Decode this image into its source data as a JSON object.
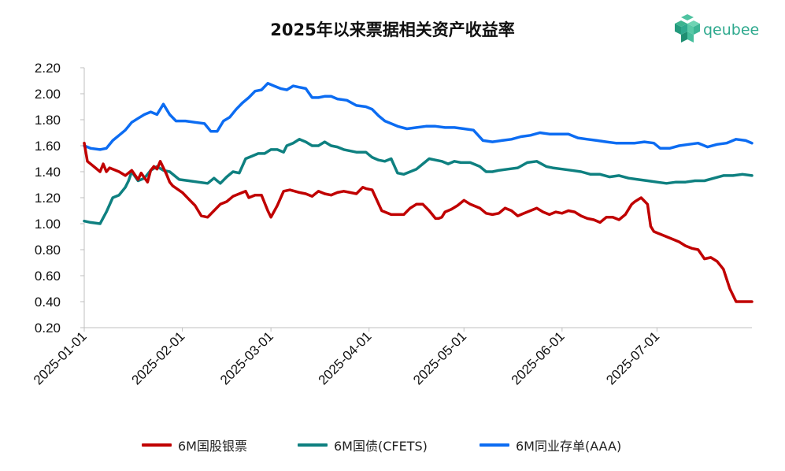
{
  "title": "2025年以来票据相关资产收益率",
  "logo": {
    "text": "qeubee",
    "icon": "hexagon-cube-icon",
    "color": "#2ea98e"
  },
  "chart_data": {
    "type": "line",
    "title": "2025年以来票据相关资产收益率",
    "xlabel": "",
    "ylabel": "",
    "ylim": [
      0.2,
      2.2
    ],
    "yticks": [
      "0.20",
      "0.40",
      "0.60",
      "0.80",
      "1.00",
      "1.20",
      "1.40",
      "1.60",
      "1.80",
      "2.00",
      "2.20"
    ],
    "xlim": [
      "2025-01-01",
      "2025-07-31"
    ],
    "xticks": [
      "2025-01-01",
      "2025-02-01",
      "2025-03-01",
      "2025-04-01",
      "2025-05-01",
      "2025-06-01",
      "2025-07-01"
    ],
    "grid": false,
    "legend": "bottom",
    "series": [
      {
        "name": "6M国股银票",
        "color": "#c00000",
        "x": [
          "2025-01-01",
          "2025-01-02",
          "2025-01-04",
          "2025-01-06",
          "2025-01-07",
          "2025-01-08",
          "2025-01-09",
          "2025-01-10",
          "2025-01-12",
          "2025-01-14",
          "2025-01-16",
          "2025-01-18",
          "2025-01-19",
          "2025-01-21",
          "2025-01-22",
          "2025-01-23",
          "2025-01-24",
          "2025-01-25",
          "2025-01-27",
          "2025-01-28",
          "2025-01-29",
          "2025-02-01",
          "2025-02-03",
          "2025-02-05",
          "2025-02-06",
          "2025-02-07",
          "2025-02-09",
          "2025-02-11",
          "2025-02-13",
          "2025-02-15",
          "2025-02-17",
          "2025-02-19",
          "2025-02-21",
          "2025-02-22",
          "2025-02-24",
          "2025-02-26",
          "2025-02-27",
          "2025-02-28",
          "2025-03-01",
          "2025-03-03",
          "2025-03-05",
          "2025-03-07",
          "2025-03-10",
          "2025-03-12",
          "2025-03-14",
          "2025-03-16",
          "2025-03-18",
          "2025-03-20",
          "2025-03-22",
          "2025-03-24",
          "2025-03-26",
          "2025-03-28",
          "2025-03-30",
          "2025-03-31",
          "2025-04-02",
          "2025-04-05",
          "2025-04-08",
          "2025-04-10",
          "2025-04-12",
          "2025-04-14",
          "2025-04-16",
          "2025-04-18",
          "2025-04-20",
          "2025-04-22",
          "2025-04-23",
          "2025-04-24",
          "2025-04-25",
          "2025-04-27",
          "2025-04-29",
          "2025-05-01",
          "2025-05-03",
          "2025-05-06",
          "2025-05-08",
          "2025-05-10",
          "2025-05-12",
          "2025-05-14",
          "2025-05-16",
          "2025-05-18",
          "2025-05-20",
          "2025-05-22",
          "2025-05-24",
          "2025-05-26",
          "2025-05-28",
          "2025-05-30",
          "2025-06-01",
          "2025-06-03",
          "2025-06-05",
          "2025-06-07",
          "2025-06-09",
          "2025-06-11",
          "2025-06-13",
          "2025-06-15",
          "2025-06-17",
          "2025-06-19",
          "2025-06-21",
          "2025-06-23",
          "2025-06-24",
          "2025-06-26",
          "2025-06-28",
          "2025-06-29",
          "2025-06-30",
          "2025-07-01",
          "2025-07-02",
          "2025-07-04",
          "2025-07-06",
          "2025-07-08",
          "2025-07-10",
          "2025-07-12",
          "2025-07-14",
          "2025-07-16",
          "2025-07-18",
          "2025-07-20",
          "2025-07-21",
          "2025-07-22",
          "2025-07-24",
          "2025-07-26",
          "2025-07-27",
          "2025-07-28",
          "2025-07-29",
          "2025-07-31"
        ],
        "values": [
          1.62,
          1.48,
          1.44,
          1.4,
          1.46,
          1.4,
          1.43,
          1.42,
          1.4,
          1.37,
          1.41,
          1.34,
          1.39,
          1.32,
          1.41,
          1.44,
          1.42,
          1.48,
          1.38,
          1.32,
          1.29,
          1.24,
          1.19,
          1.14,
          1.1,
          1.06,
          1.05,
          1.1,
          1.15,
          1.17,
          1.21,
          1.23,
          1.25,
          1.2,
          1.22,
          1.22,
          1.16,
          1.1,
          1.05,
          1.14,
          1.25,
          1.26,
          1.24,
          1.23,
          1.21,
          1.25,
          1.23,
          1.22,
          1.24,
          1.25,
          1.24,
          1.23,
          1.28,
          1.27,
          1.26,
          1.1,
          1.07,
          1.07,
          1.07,
          1.12,
          1.15,
          1.15,
          1.1,
          1.04,
          1.04,
          1.05,
          1.09,
          1.11,
          1.14,
          1.18,
          1.15,
          1.12,
          1.08,
          1.07,
          1.08,
          1.12,
          1.1,
          1.06,
          1.08,
          1.1,
          1.12,
          1.09,
          1.07,
          1.09,
          1.08,
          1.1,
          1.09,
          1.06,
          1.04,
          1.03,
          1.01,
          1.05,
          1.05,
          1.03,
          1.07,
          1.15,
          1.17,
          1.2,
          1.15,
          0.98,
          0.94,
          0.93,
          0.92,
          0.9,
          0.88,
          0.86,
          0.83,
          0.81,
          0.8,
          0.73,
          0.74,
          0.71,
          0.68,
          0.65,
          0.5,
          0.4,
          0.4,
          0.4,
          0.4,
          0.4
        ]
      },
      {
        "name": "6M国债(CFETS)",
        "color": "#0e8080",
        "x": [
          "2025-01-01",
          "2025-01-03",
          "2025-01-06",
          "2025-01-08",
          "2025-01-10",
          "2025-01-12",
          "2025-01-14",
          "2025-01-15",
          "2025-01-16",
          "2025-01-18",
          "2025-01-20",
          "2025-01-22",
          "2025-01-24",
          "2025-01-26",
          "2025-01-28",
          "2025-01-31",
          "2025-02-03",
          "2025-02-06",
          "2025-02-09",
          "2025-02-11",
          "2025-02-13",
          "2025-02-15",
          "2025-02-17",
          "2025-02-19",
          "2025-02-21",
          "2025-02-23",
          "2025-02-25",
          "2025-02-27",
          "2025-03-01",
          "2025-03-03",
          "2025-03-05",
          "2025-03-06",
          "2025-03-08",
          "2025-03-10",
          "2025-03-12",
          "2025-03-14",
          "2025-03-16",
          "2025-03-18",
          "2025-03-20",
          "2025-03-22",
          "2025-03-24",
          "2025-03-26",
          "2025-03-28",
          "2025-03-31",
          "2025-04-02",
          "2025-04-04",
          "2025-04-06",
          "2025-04-08",
          "2025-04-10",
          "2025-04-12",
          "2025-04-14",
          "2025-04-16",
          "2025-04-18",
          "2025-04-20",
          "2025-04-22",
          "2025-04-24",
          "2025-04-26",
          "2025-04-28",
          "2025-04-30",
          "2025-05-03",
          "2025-05-06",
          "2025-05-08",
          "2025-05-10",
          "2025-05-12",
          "2025-05-15",
          "2025-05-18",
          "2025-05-21",
          "2025-05-24",
          "2025-05-27",
          "2025-05-29",
          "2025-06-01",
          "2025-06-04",
          "2025-06-07",
          "2025-06-10",
          "2025-06-13",
          "2025-06-16",
          "2025-06-19",
          "2025-06-22",
          "2025-06-25",
          "2025-06-28",
          "2025-07-01",
          "2025-07-04",
          "2025-07-07",
          "2025-07-10",
          "2025-07-13",
          "2025-07-16",
          "2025-07-19",
          "2025-07-22",
          "2025-07-25",
          "2025-07-28",
          "2025-07-31"
        ],
        "values": [
          1.02,
          1.01,
          1.0,
          1.09,
          1.2,
          1.22,
          1.28,
          1.33,
          1.4,
          1.33,
          1.35,
          1.41,
          1.44,
          1.41,
          1.4,
          1.34,
          1.33,
          1.32,
          1.31,
          1.35,
          1.31,
          1.36,
          1.4,
          1.39,
          1.5,
          1.52,
          1.54,
          1.54,
          1.57,
          1.57,
          1.55,
          1.6,
          1.62,
          1.65,
          1.63,
          1.6,
          1.6,
          1.63,
          1.6,
          1.59,
          1.57,
          1.56,
          1.55,
          1.55,
          1.51,
          1.49,
          1.48,
          1.5,
          1.39,
          1.38,
          1.4,
          1.42,
          1.46,
          1.5,
          1.49,
          1.48,
          1.46,
          1.48,
          1.47,
          1.47,
          1.44,
          1.4,
          1.4,
          1.41,
          1.42,
          1.43,
          1.47,
          1.48,
          1.44,
          1.43,
          1.42,
          1.41,
          1.4,
          1.38,
          1.38,
          1.36,
          1.37,
          1.35,
          1.34,
          1.33,
          1.32,
          1.31,
          1.32,
          1.32,
          1.33,
          1.33,
          1.35,
          1.37,
          1.37,
          1.38,
          1.37
        ]
      },
      {
        "name": "6M同业存单(AAA)",
        "color": "#0c6cf2",
        "x": [
          "2025-01-01",
          "2025-01-03",
          "2025-01-06",
          "2025-01-08",
          "2025-01-10",
          "2025-01-12",
          "2025-01-14",
          "2025-01-16",
          "2025-01-18",
          "2025-01-20",
          "2025-01-22",
          "2025-01-24",
          "2025-01-26",
          "2025-01-28",
          "2025-01-30",
          "2025-02-02",
          "2025-02-05",
          "2025-02-08",
          "2025-02-10",
          "2025-02-12",
          "2025-02-14",
          "2025-02-16",
          "2025-02-18",
          "2025-02-20",
          "2025-02-22",
          "2025-02-24",
          "2025-02-26",
          "2025-02-28",
          "2025-03-02",
          "2025-03-04",
          "2025-03-06",
          "2025-03-08",
          "2025-03-10",
          "2025-03-12",
          "2025-03-14",
          "2025-03-16",
          "2025-03-18",
          "2025-03-20",
          "2025-03-22",
          "2025-03-25",
          "2025-03-28",
          "2025-03-31",
          "2025-04-02",
          "2025-04-04",
          "2025-04-06",
          "2025-04-08",
          "2025-04-10",
          "2025-04-13",
          "2025-04-16",
          "2025-04-19",
          "2025-04-22",
          "2025-04-25",
          "2025-04-28",
          "2025-05-01",
          "2025-05-04",
          "2025-05-07",
          "2025-05-10",
          "2025-05-13",
          "2025-05-16",
          "2025-05-19",
          "2025-05-22",
          "2025-05-25",
          "2025-05-28",
          "2025-05-31",
          "2025-06-03",
          "2025-06-06",
          "2025-06-09",
          "2025-06-12",
          "2025-06-15",
          "2025-06-18",
          "2025-06-21",
          "2025-06-24",
          "2025-06-27",
          "2025-06-30",
          "2025-07-02",
          "2025-07-05",
          "2025-07-08",
          "2025-07-11",
          "2025-07-14",
          "2025-07-17",
          "2025-07-20",
          "2025-07-23",
          "2025-07-26",
          "2025-07-29",
          "2025-07-31"
        ],
        "values": [
          1.6,
          1.58,
          1.57,
          1.58,
          1.64,
          1.68,
          1.72,
          1.78,
          1.81,
          1.84,
          1.86,
          1.84,
          1.92,
          1.84,
          1.79,
          1.79,
          1.78,
          1.77,
          1.71,
          1.71,
          1.79,
          1.82,
          1.88,
          1.93,
          1.97,
          2.02,
          2.03,
          2.08,
          2.06,
          2.04,
          2.03,
          2.06,
          2.05,
          2.04,
          1.97,
          1.97,
          1.98,
          1.98,
          1.96,
          1.95,
          1.91,
          1.9,
          1.88,
          1.83,
          1.79,
          1.77,
          1.75,
          1.73,
          1.74,
          1.75,
          1.75,
          1.74,
          1.74,
          1.73,
          1.72,
          1.64,
          1.63,
          1.64,
          1.65,
          1.67,
          1.68,
          1.7,
          1.69,
          1.69,
          1.69,
          1.66,
          1.65,
          1.64,
          1.63,
          1.62,
          1.62,
          1.62,
          1.63,
          1.62,
          1.58,
          1.58,
          1.6,
          1.61,
          1.62,
          1.59,
          1.61,
          1.62,
          1.65,
          1.64,
          1.62
        ]
      }
    ]
  }
}
